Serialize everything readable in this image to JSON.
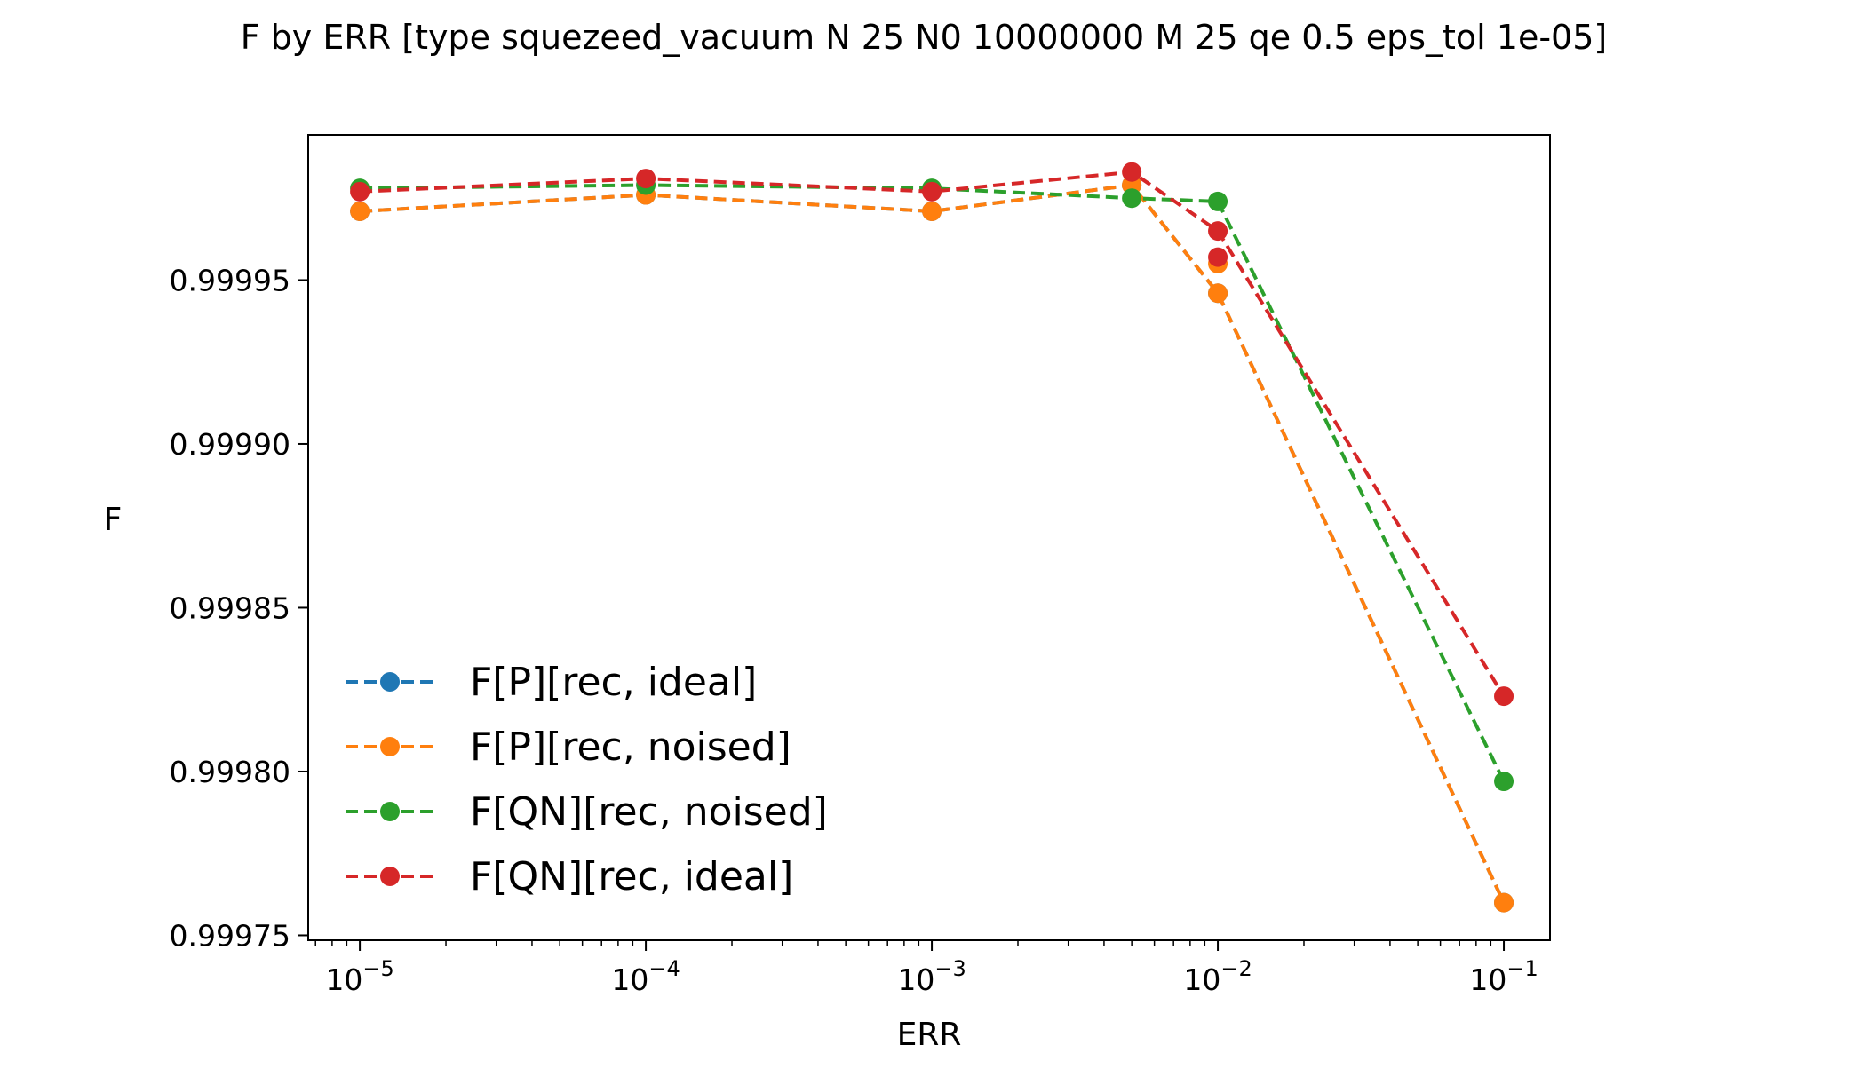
{
  "chart_data": {
    "type": "line",
    "title": "F by ERR [type squezeed_vacuum N 25 N0 10000000 M 25 qe 0.5 eps_tol 1e-05]",
    "xlabel": "ERR",
    "ylabel": "F",
    "xscale": "log",
    "xlim": [
      6.6e-06,
      0.145
    ],
    "ylim": [
      0.9997485,
      0.9999943
    ],
    "x": [
      1e-05,
      0.0001,
      0.001,
      0.005,
      0.01,
      0.1
    ],
    "x_ticks": [
      {
        "value": 1e-05,
        "base": "10",
        "exp": "−5"
      },
      {
        "value": 0.0001,
        "base": "10",
        "exp": "−4"
      },
      {
        "value": 0.001,
        "base": "10",
        "exp": "−3"
      },
      {
        "value": 0.01,
        "base": "10",
        "exp": "−2"
      },
      {
        "value": 0.1,
        "base": "10",
        "exp": "−1"
      }
    ],
    "y_ticks": [
      {
        "value": 0.99975,
        "label": "0.99975"
      },
      {
        "value": 0.9998,
        "label": "0.99980"
      },
      {
        "value": 0.99985,
        "label": "0.99985"
      },
      {
        "value": 0.9999,
        "label": "0.99990"
      },
      {
        "value": 0.99995,
        "label": "0.99995"
      }
    ],
    "series": [
      {
        "name": "F[P][rec, ideal]",
        "color": "#1f77b4",
        "style": "dashed",
        "marker": "circle",
        "values": [
          0.999971,
          0.999976,
          0.999971,
          0.999979,
          0.999946,
          0.99976
        ]
      },
      {
        "name": "F[P][rec, noised]",
        "color": "#ff7f0e",
        "style": "dashed",
        "marker": "circle",
        "values": [
          0.999971,
          0.999976,
          0.999971,
          0.999979,
          0.999946,
          0.99976
        ]
      },
      {
        "name": "F[QN][rec, noised]",
        "color": "#2ca02c",
        "style": "dashed",
        "marker": "circle",
        "values": [
          0.999978,
          0.999979,
          0.999978,
          0.999975,
          0.999974,
          0.999797
        ]
      },
      {
        "name": "F[QN][rec, ideal]",
        "color": "#d62728",
        "style": "dashed",
        "marker": "circle",
        "values": [
          0.999977,
          0.999981,
          0.999977,
          0.999983,
          0.999965,
          0.999823
        ]
      }
    ],
    "extra_points": [
      {
        "series": "F[P][rec, noised]",
        "x": 0.01,
        "y": 0.999955
      },
      {
        "series": "F[QN][rec, ideal]",
        "x": 0.01,
        "y": 0.999957
      }
    ],
    "legend": "lower-left",
    "grid": false
  }
}
